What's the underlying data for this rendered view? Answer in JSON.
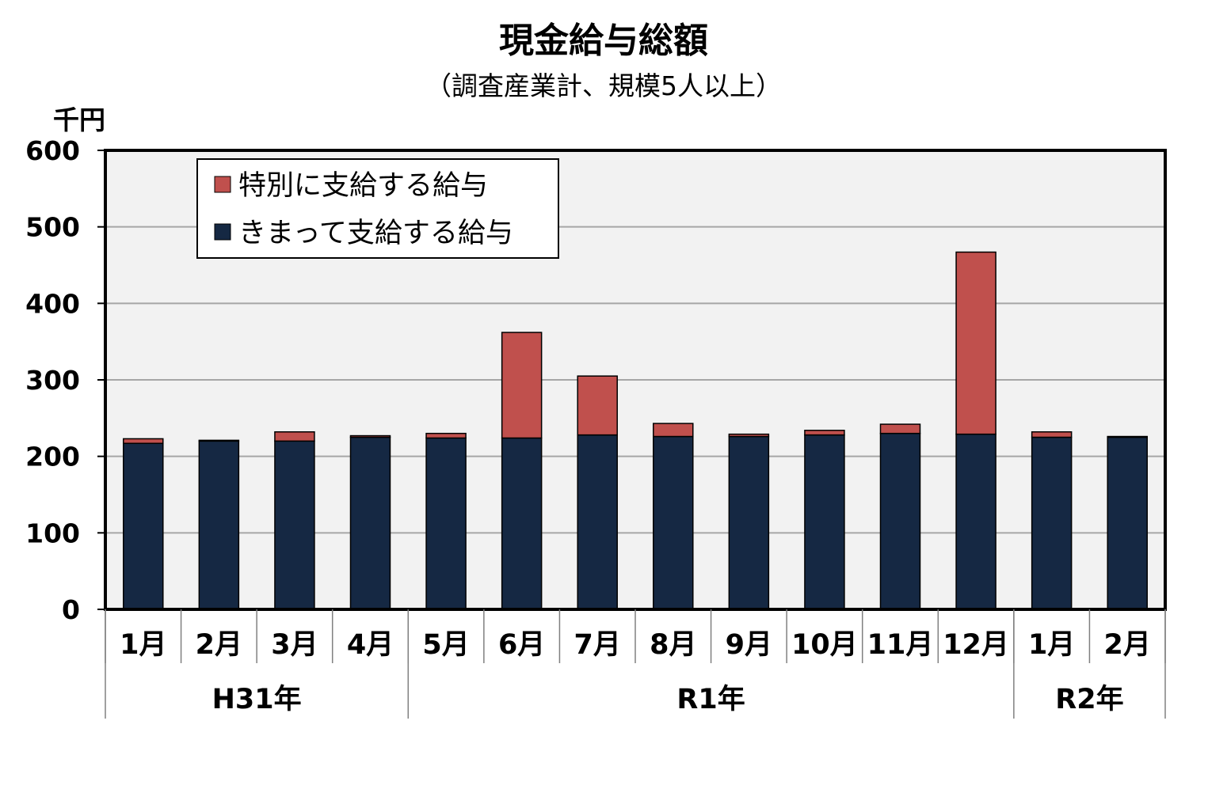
{
  "chart_data": {
    "type": "bar",
    "stacked": true,
    "title": "現金給与総額",
    "subtitle": "（調査産業計、規模5人以上）",
    "yunit": "千円",
    "ylim": [
      0,
      600
    ],
    "yticks": [
      0,
      100,
      200,
      300,
      400,
      500,
      600
    ],
    "grid": true,
    "legend_position": "top-left",
    "categories": [
      "1月",
      "2月",
      "3月",
      "4月",
      "5月",
      "6月",
      "7月",
      "8月",
      "9月",
      "10月",
      "11月",
      "12月",
      "1月",
      "2月"
    ],
    "groups": [
      {
        "label": "H31年",
        "count": 4
      },
      {
        "label": "R1年",
        "count": 8
      },
      {
        "label": "R2年",
        "count": 2
      }
    ],
    "series": [
      {
        "name": "きまって支給する給与",
        "color": "#152843",
        "values": [
          217,
          220,
          220,
          225,
          224,
          224,
          228,
          226,
          226,
          228,
          230,
          229,
          225,
          225
        ]
      },
      {
        "name": "特別に支給する給与",
        "color": "#c0504d",
        "values": [
          6,
          1,
          12,
          2,
          6,
          138,
          77,
          17,
          3,
          6,
          12,
          238,
          7,
          1
        ]
      }
    ],
    "legend_order": [
      "特別に支給する給与",
      "きまって支給する給与"
    ],
    "colors": {
      "plot_background": "#f2f2f2",
      "gridline": "#a6a6a6",
      "axis": "#000000",
      "bar_border": "#000000"
    }
  }
}
